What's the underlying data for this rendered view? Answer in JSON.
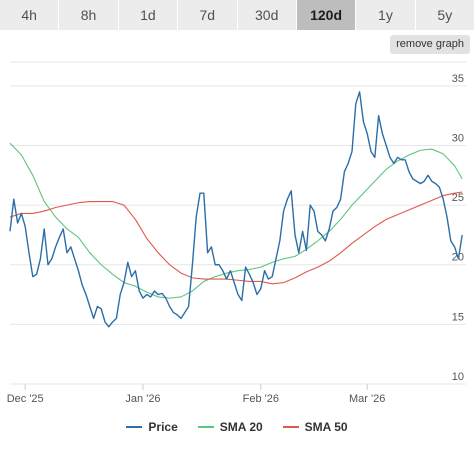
{
  "tabs": [
    {
      "label": "4h",
      "active": false
    },
    {
      "label": "8h",
      "active": false
    },
    {
      "label": "1d",
      "active": false
    },
    {
      "label": "7d",
      "active": false
    },
    {
      "label": "30d",
      "active": false
    },
    {
      "label": "120d",
      "active": true
    },
    {
      "label": "1y",
      "active": false
    },
    {
      "label": "5y",
      "active": false
    }
  ],
  "remove_button_label": "remove graph",
  "chart_data": {
    "type": "line",
    "xlim": [
      0,
      120
    ],
    "ylim": [
      10,
      37
    ],
    "y_ticks": [
      10,
      15,
      20,
      25,
      30,
      35
    ],
    "x_ticks": [
      {
        "label": "Dec '25",
        "x": 4
      },
      {
        "label": "Jan '26",
        "x": 35
      },
      {
        "label": "Feb '26",
        "x": 66
      },
      {
        "label": "Mar '26",
        "x": 94
      }
    ],
    "grid": true,
    "legend_position": "bottom",
    "series": [
      {
        "name": "Price",
        "color": "#2b6ea8",
        "points": [
          [
            0,
            22.8
          ],
          [
            1,
            25.5
          ],
          [
            2,
            23.5
          ],
          [
            3,
            24.3
          ],
          [
            4,
            23.2
          ],
          [
            5,
            21
          ],
          [
            6,
            19
          ],
          [
            7,
            19.2
          ],
          [
            8,
            20.5
          ],
          [
            9,
            23
          ],
          [
            10,
            20
          ],
          [
            11,
            20.5
          ],
          [
            12,
            21.5
          ],
          [
            13,
            22.3
          ],
          [
            14,
            23
          ],
          [
            15,
            21
          ],
          [
            16,
            21.5
          ],
          [
            17,
            20.5
          ],
          [
            18,
            19.5
          ],
          [
            19,
            18.3
          ],
          [
            20,
            17.5
          ],
          [
            21,
            16.5
          ],
          [
            22,
            15.5
          ],
          [
            23,
            16.5
          ],
          [
            24,
            16.3
          ],
          [
            25,
            15.2
          ],
          [
            26,
            14.8
          ],
          [
            27,
            15.2
          ],
          [
            28,
            15.5
          ],
          [
            29,
            17.5
          ],
          [
            30,
            18.5
          ],
          [
            31,
            20.2
          ],
          [
            32,
            19
          ],
          [
            33,
            19.5
          ],
          [
            34,
            17.8
          ],
          [
            35,
            17.2
          ],
          [
            36,
            17.5
          ],
          [
            37,
            17.3
          ],
          [
            38,
            17.8
          ],
          [
            39,
            17.5
          ],
          [
            40,
            17.6
          ],
          [
            41,
            17.2
          ],
          [
            42,
            16.5
          ],
          [
            43,
            16
          ],
          [
            44,
            15.8
          ],
          [
            45,
            15.5
          ],
          [
            46,
            16
          ],
          [
            47,
            16.5
          ],
          [
            48,
            20
          ],
          [
            49,
            24
          ],
          [
            50,
            26
          ],
          [
            51,
            26
          ],
          [
            52,
            21
          ],
          [
            53,
            21.5
          ],
          [
            54,
            20
          ],
          [
            55,
            20
          ],
          [
            56,
            19.5
          ],
          [
            57,
            18.8
          ],
          [
            58,
            19.5
          ],
          [
            59,
            18.5
          ],
          [
            60,
            17.5
          ],
          [
            61,
            17
          ],
          [
            62,
            19.8
          ],
          [
            63,
            19.2
          ],
          [
            64,
            18.5
          ],
          [
            65,
            17.5
          ],
          [
            66,
            18
          ],
          [
            67,
            19.5
          ],
          [
            68,
            18.8
          ],
          [
            69,
            19
          ],
          [
            70,
            20.5
          ],
          [
            71,
            22
          ],
          [
            72,
            24.5
          ],
          [
            73,
            25.5
          ],
          [
            74,
            26.2
          ],
          [
            75,
            22.5
          ],
          [
            76,
            21
          ],
          [
            77,
            22.8
          ],
          [
            78,
            21.2
          ],
          [
            79,
            25
          ],
          [
            80,
            24.5
          ],
          [
            81,
            22.8
          ],
          [
            82,
            22.5
          ],
          [
            83,
            22
          ],
          [
            84,
            23
          ],
          [
            85,
            24.5
          ],
          [
            86,
            24.8
          ],
          [
            87,
            25.5
          ],
          [
            88,
            27.8
          ],
          [
            89,
            28.5
          ],
          [
            90,
            29.5
          ],
          [
            91,
            33.5
          ],
          [
            92,
            34.5
          ],
          [
            93,
            32
          ],
          [
            94,
            31
          ],
          [
            95,
            29.5
          ],
          [
            96,
            29
          ],
          [
            97,
            32.5
          ],
          [
            98,
            31
          ],
          [
            99,
            30
          ],
          [
            100,
            29
          ],
          [
            101,
            28.5
          ],
          [
            102,
            29
          ],
          [
            103,
            28.8
          ],
          [
            104,
            28.8
          ],
          [
            105,
            27.8
          ],
          [
            106,
            27.2
          ],
          [
            107,
            27
          ],
          [
            108,
            26.8
          ],
          [
            109,
            27
          ],
          [
            110,
            27.5
          ],
          [
            111,
            27
          ],
          [
            112,
            26.8
          ],
          [
            113,
            26.5
          ],
          [
            114,
            25.5
          ],
          [
            115,
            24
          ],
          [
            116,
            22
          ],
          [
            117,
            21.5
          ],
          [
            118,
            20.5
          ],
          [
            119,
            22.5
          ]
        ]
      },
      {
        "name": "SMA 20",
        "color": "#5ec47f",
        "points": [
          [
            0,
            30.2
          ],
          [
            3,
            29.2
          ],
          [
            6,
            27.5
          ],
          [
            9,
            25.3
          ],
          [
            12,
            24
          ],
          [
            15,
            23
          ],
          [
            18,
            22.3
          ],
          [
            21,
            21
          ],
          [
            24,
            20
          ],
          [
            27,
            19.2
          ],
          [
            30,
            18.5
          ],
          [
            33,
            18.2
          ],
          [
            36,
            17.7
          ],
          [
            39,
            17.3
          ],
          [
            42,
            17.2
          ],
          [
            45,
            17.3
          ],
          [
            48,
            17.8
          ],
          [
            51,
            18.6
          ],
          [
            54,
            19
          ],
          [
            57,
            19.3
          ],
          [
            60,
            19.5
          ],
          [
            63,
            19.6
          ],
          [
            66,
            19.8
          ],
          [
            69,
            20.2
          ],
          [
            72,
            20.5
          ],
          [
            75,
            20.7
          ],
          [
            78,
            21.3
          ],
          [
            81,
            22
          ],
          [
            84,
            22.8
          ],
          [
            87,
            23.8
          ],
          [
            90,
            25
          ],
          [
            93,
            26
          ],
          [
            96,
            27
          ],
          [
            99,
            28
          ],
          [
            102,
            28.7
          ],
          [
            105,
            29.2
          ],
          [
            108,
            29.6
          ],
          [
            111,
            29.7
          ],
          [
            114,
            29.3
          ],
          [
            117,
            28.3
          ],
          [
            119,
            27.2
          ]
        ]
      },
      {
        "name": "SMA 50",
        "color": "#e0584a",
        "points": [
          [
            0,
            24
          ],
          [
            3,
            24.3
          ],
          [
            6,
            24.3
          ],
          [
            9,
            24.5
          ],
          [
            12,
            24.8
          ],
          [
            15,
            25
          ],
          [
            18,
            25.2
          ],
          [
            21,
            25.3
          ],
          [
            24,
            25.3
          ],
          [
            27,
            25.3
          ],
          [
            30,
            25
          ],
          [
            33,
            23.8
          ],
          [
            36,
            22.2
          ],
          [
            39,
            21
          ],
          [
            42,
            20
          ],
          [
            45,
            19.3
          ],
          [
            48,
            18.9
          ],
          [
            51,
            18.8
          ],
          [
            54,
            18.8
          ],
          [
            57,
            18.8
          ],
          [
            60,
            18.7
          ],
          [
            63,
            18.6
          ],
          [
            66,
            18.6
          ],
          [
            69,
            18.4
          ],
          [
            72,
            18.5
          ],
          [
            75,
            18.9
          ],
          [
            78,
            19.4
          ],
          [
            81,
            19.8
          ],
          [
            84,
            20.3
          ],
          [
            87,
            21
          ],
          [
            90,
            21.8
          ],
          [
            93,
            22.5
          ],
          [
            96,
            23.2
          ],
          [
            99,
            23.8
          ],
          [
            102,
            24.2
          ],
          [
            105,
            24.6
          ],
          [
            108,
            25
          ],
          [
            111,
            25.4
          ],
          [
            114,
            25.8
          ],
          [
            117,
            26
          ],
          [
            119,
            26.1
          ]
        ]
      }
    ]
  }
}
